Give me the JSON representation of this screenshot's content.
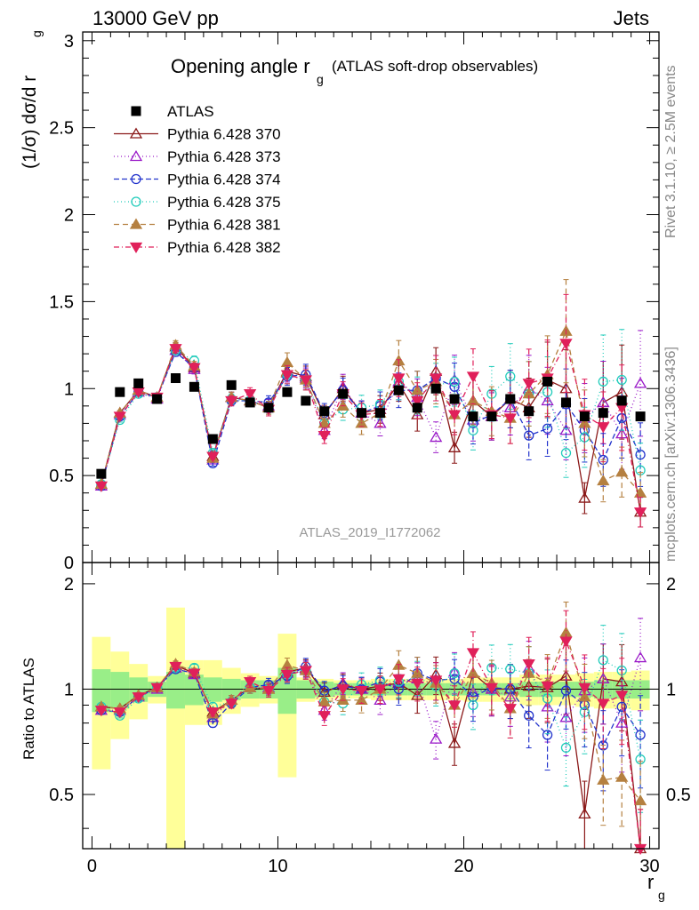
{
  "header": {
    "left": "13000 GeV pp",
    "right": "Jets"
  },
  "side_text": {
    "rivet": "Rivet 3.1.10, ≥ 2.5M events",
    "mcplots": "mcplots.cern.ch [arXiv:1306.3436]"
  },
  "chart_data": [
    {
      "type": "scatter",
      "title": "Opening angle r_g (ATLAS soft-drop observables)",
      "title_main": "Opening angle r",
      "title_sub": "g",
      "title_rest": "(ATLAS soft-drop observables)",
      "ylabel": "(1/σ) dσ/d r_g",
      "watermark": "ATLAS_2019_I1772062",
      "ylim": [
        0,
        3.05
      ],
      "xlim": [
        -0.5,
        30.5
      ],
      "yticks": [
        0,
        0.5,
        1,
        1.5,
        2,
        2.5,
        3
      ],
      "ytick_labels": [
        "0",
        "0.5",
        "1",
        "1.5",
        "2",
        "2.5",
        "3"
      ],
      "legend": [
        "ATLAS",
        "Pythia 6.428 370",
        "Pythia 6.428 373",
        "Pythia 6.428 374",
        "Pythia 6.428 375",
        "Pythia 6.428 381",
        "Pythia 6.428 382"
      ],
      "x": [
        0.5,
        1.5,
        2.5,
        3.5,
        4.5,
        5.5,
        6.5,
        7.5,
        8.5,
        9.5,
        10.5,
        11.5,
        12.5,
        13.5,
        14.5,
        15.5,
        16.5,
        17.5,
        18.5,
        19.5,
        20.5,
        21.5,
        22.5,
        23.5,
        24.5,
        25.5,
        26.5,
        27.5,
        28.5,
        29.5
      ],
      "data": {
        "name": "ATLAS",
        "values": [
          0.51,
          0.98,
          1.03,
          0.94,
          1.06,
          1.01,
          0.71,
          1.02,
          0.92,
          0.89,
          0.98,
          0.93,
          0.87,
          0.97,
          0.86,
          0.86,
          0.99,
          0.89,
          1.0,
          0.94,
          0.84,
          0.84,
          0.94,
          0.87,
          1.04,
          0.92,
          0.84,
          0.86,
          0.93,
          0.84
        ]
      },
      "series": [
        {
          "name": "Pythia 6.428 370",
          "color": "#8b1a1a",
          "dash": "",
          "marker": "tri-up-open",
          "values": [
            0.45,
            0.86,
            0.99,
            0.95,
            1.24,
            1.12,
            0.61,
            0.95,
            0.93,
            0.89,
            1.1,
            1.07,
            0.85,
            1.0,
            0.86,
            0.88,
            1.03,
            0.85,
            1.1,
            0.66,
            0.93,
            0.84,
            0.94,
            0.89,
            1.05,
            1.0,
            0.37,
            0.92,
            0.98,
            0.29
          ]
        },
        {
          "name": "Pythia 6.428 373",
          "color": "#9a1ac8",
          "dash": "1,3",
          "marker": "tri-up-open",
          "values": [
            0.44,
            0.85,
            0.98,
            0.94,
            1.22,
            1.11,
            0.59,
            0.95,
            0.93,
            0.9,
            1.09,
            1.06,
            0.76,
            1.01,
            0.86,
            0.8,
            1.04,
            0.95,
            0.72,
            1.05,
            0.82,
            0.84,
            0.89,
            1.0,
            0.93,
            0.76,
            0.83,
            0.92,
            0.74,
            1.03
          ]
        },
        {
          "name": "Pythia 6.428 374",
          "color": "#2233cc",
          "dash": "6,3",
          "marker": "circle-open",
          "values": [
            0.44,
            0.84,
            0.98,
            0.95,
            1.21,
            1.12,
            0.57,
            0.93,
            0.93,
            0.92,
            1.07,
            1.08,
            0.86,
            0.99,
            0.86,
            0.9,
            0.99,
            0.99,
            1.06,
            1.01,
            0.8,
            0.85,
            0.94,
            0.73,
            0.77,
            0.91,
            0.76,
            0.59,
            0.83,
            0.62
          ]
        },
        {
          "name": "Pythia 6.428 375",
          "color": "#22ccbb",
          "dash": "1,3",
          "marker": "circle-open",
          "values": [
            0.45,
            0.82,
            0.97,
            0.95,
            1.22,
            1.16,
            0.63,
            0.94,
            0.93,
            0.89,
            1.08,
            1.05,
            0.8,
            0.88,
            0.89,
            0.91,
            1.04,
            0.96,
            1.02,
            1.04,
            0.76,
            0.97,
            1.07,
            0.97,
            0.98,
            0.63,
            0.72,
            1.04,
            1.05,
            0.53
          ]
        },
        {
          "name": "Pythia 6.428 381",
          "color": "#b58040",
          "dash": "6,4",
          "marker": "tri-up-filled",
          "values": [
            0.45,
            0.86,
            0.99,
            0.95,
            1.25,
            1.13,
            0.6,
            0.95,
            0.93,
            0.89,
            1.15,
            1.05,
            0.8,
            0.9,
            0.8,
            0.86,
            1.16,
            0.99,
            1.04,
            0.85,
            0.93,
            0.87,
            0.83,
            0.97,
            1.08,
            1.33,
            0.8,
            0.47,
            0.52,
            0.4
          ]
        },
        {
          "name": "Pythia 6.428 382",
          "color": "#e0205a",
          "dash": "6,3,1,3",
          "marker": "tri-down-filled",
          "values": [
            0.44,
            0.84,
            0.98,
            0.95,
            1.23,
            1.12,
            0.61,
            0.93,
            0.97,
            0.88,
            1.08,
            1.05,
            0.73,
            0.97,
            0.85,
            0.86,
            1.06,
            0.93,
            1.06,
            0.85,
            1.07,
            0.85,
            0.83,
            1.03,
            1.06,
            1.26,
            0.85,
            0.78,
            0.89,
            0.29
          ]
        }
      ]
    },
    {
      "type": "scatter",
      "title": "",
      "ylabel": "Ratio to ATLAS",
      "xlabel": "r_g",
      "xlabel_main": "r",
      "xlabel_sub": "g",
      "ylim": [
        0.35,
        2.3
      ],
      "xlim": [
        -0.5,
        30.5
      ],
      "yticks": [
        0.5,
        1,
        2
      ],
      "ytick_labels": [
        "0.5",
        "1",
        "2"
      ],
      "xticks": [
        0,
        10,
        20,
        30
      ],
      "xtick_labels": [
        "0",
        "10",
        "20",
        "30"
      ],
      "reference_line": 1,
      "band_inner_halfwidth": [
        0.14,
        0.12,
        0.08,
        0.05,
        0.12,
        0.1,
        0.08,
        0.07,
        0.06,
        0.06,
        0.15,
        0.06,
        0.05,
        0.04,
        0.04,
        0.04,
        0.04,
        0.04,
        0.04,
        0.04,
        0.04,
        0.04,
        0.04,
        0.05,
        0.05,
        0.05,
        0.05,
        0.06,
        0.06,
        0.06
      ],
      "band_outer_halfwidth": [
        0.41,
        0.28,
        0.18,
        0.09,
        0.71,
        0.21,
        0.21,
        0.15,
        0.11,
        0.09,
        0.44,
        0.08,
        0.07,
        0.06,
        0.06,
        0.07,
        0.07,
        0.07,
        0.07,
        0.07,
        0.08,
        0.08,
        0.08,
        0.1,
        0.1,
        0.1,
        0.11,
        0.12,
        0.12,
        0.13
      ],
      "series": [
        {
          "name": "Pythia 6.428 370",
          "values": [
            0.89,
            0.88,
            0.96,
            1.01,
            1.17,
            1.11,
            0.86,
            0.93,
            1.01,
            1.0,
            1.12,
            1.15,
            0.98,
            1.03,
            1.0,
            1.02,
            1.04,
            0.96,
            1.1,
            0.7,
            1.11,
            1.0,
            1.0,
            1.02,
            1.01,
            1.09,
            0.44,
            1.07,
            1.05,
            0.35
          ]
        },
        {
          "name": "Pythia 6.428 373",
          "values": [
            0.87,
            0.87,
            0.95,
            1.0,
            1.15,
            1.1,
            0.83,
            0.93,
            1.01,
            1.01,
            1.11,
            1.14,
            0.87,
            1.04,
            1.0,
            0.93,
            1.05,
            1.07,
            0.72,
            1.12,
            0.98,
            1.0,
            0.95,
            1.15,
            0.89,
            0.83,
            0.99,
            1.07,
            0.8,
            1.23
          ]
        },
        {
          "name": "Pythia 6.428 374",
          "values": [
            0.87,
            0.86,
            0.95,
            1.01,
            1.14,
            1.11,
            0.8,
            0.91,
            1.01,
            1.03,
            1.09,
            1.16,
            0.99,
            1.02,
            1.0,
            1.05,
            1.0,
            1.11,
            1.06,
            1.07,
            0.95,
            1.01,
            1.0,
            0.84,
            0.74,
            0.99,
            0.9,
            0.69,
            0.89,
            0.74
          ]
        },
        {
          "name": "Pythia 6.428 375",
          "values": [
            0.89,
            0.84,
            0.94,
            1.01,
            1.15,
            1.15,
            0.89,
            0.92,
            1.01,
            1.0,
            1.1,
            1.13,
            0.92,
            0.91,
            1.03,
            1.06,
            1.05,
            1.08,
            1.02,
            1.11,
            0.9,
            1.15,
            1.14,
            1.11,
            0.94,
            0.68,
            0.86,
            1.21,
            1.13,
            0.63
          ]
        },
        {
          "name": "Pythia 6.428 381",
          "values": [
            0.89,
            0.88,
            0.96,
            1.01,
            1.18,
            1.12,
            0.85,
            0.93,
            1.01,
            1.0,
            1.17,
            1.13,
            0.92,
            0.93,
            0.93,
            1.0,
            1.17,
            1.11,
            1.04,
            0.9,
            1.11,
            1.04,
            0.88,
            1.11,
            1.04,
            1.45,
            0.95,
            0.55,
            0.56,
            0.48
          ]
        },
        {
          "name": "Pythia 6.428 382",
          "values": [
            0.87,
            0.86,
            0.95,
            1.01,
            1.16,
            1.11,
            0.86,
            0.91,
            1.05,
            0.99,
            1.1,
            1.13,
            0.84,
            1.0,
            0.99,
            1.0,
            1.07,
            1.04,
            1.06,
            0.9,
            1.27,
            1.01,
            0.88,
            1.18,
            1.02,
            1.37,
            1.01,
            0.91,
            0.96,
            0.35
          ]
        }
      ]
    }
  ]
}
